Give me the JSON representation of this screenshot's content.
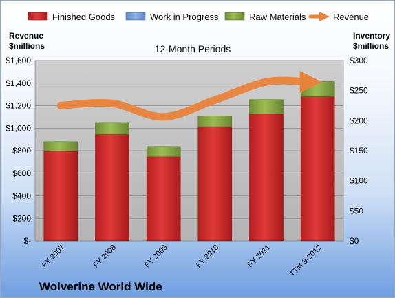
{
  "chart_data": {
    "type": "bar",
    "stacked": true,
    "subtitle": "12-Month Periods",
    "footer_title": "Wolverine World Wide",
    "categories": [
      "FY 2007",
      "FY 2008",
      "FY 2009",
      "FY 2010",
      "FY 2011",
      "TTM 3-2012"
    ],
    "left_axis": {
      "title_line1": "Revenue",
      "title_line2": "$millions",
      "range": [
        0,
        1600
      ],
      "ticks": [
        {
          "value": 0,
          "label": "$-"
        },
        {
          "value": 200,
          "label": "$200"
        },
        {
          "value": 400,
          "label": "$400"
        },
        {
          "value": 600,
          "label": "$600"
        },
        {
          "value": 800,
          "label": "$800"
        },
        {
          "value": 1000,
          "label": "$1,000"
        },
        {
          "value": 1200,
          "label": "$1,200"
        },
        {
          "value": 1400,
          "label": "$1,400"
        },
        {
          "value": 1600,
          "label": "$1,600"
        }
      ]
    },
    "right_axis": {
      "title_line1": "Inventory",
      "title_line2": "$millions",
      "range": [
        0,
        300
      ],
      "ticks": [
        {
          "value": 0,
          "label": "$0"
        },
        {
          "value": 50,
          "label": "$50"
        },
        {
          "value": 100,
          "label": "$100"
        },
        {
          "value": 150,
          "label": "$150"
        },
        {
          "value": 200,
          "label": "$200"
        },
        {
          "value": 250,
          "label": "$250"
        },
        {
          "value": 300,
          "label": "$300"
        }
      ]
    },
    "series": [
      {
        "name": "Finished Goods",
        "axis": "right",
        "color": "#d42a2a",
        "values": [
          149,
          177,
          140,
          190,
          211,
          240
        ]
      },
      {
        "name": "Work in Progress",
        "axis": "right",
        "color": "#7aa2dc",
        "values": [
          0,
          0,
          0,
          0,
          0,
          0
        ]
      },
      {
        "name": "Raw Materials",
        "axis": "right",
        "color": "#8cad4a",
        "values": [
          16,
          20,
          17,
          18,
          24,
          25
        ]
      },
      {
        "name": "Revenue",
        "axis": "left",
        "type": "line",
        "color": "#e8833a",
        "values": [
          1200,
          1220,
          1100,
          1250,
          1410,
          1410
        ]
      }
    ],
    "grid": true,
    "legend_position": "top"
  }
}
